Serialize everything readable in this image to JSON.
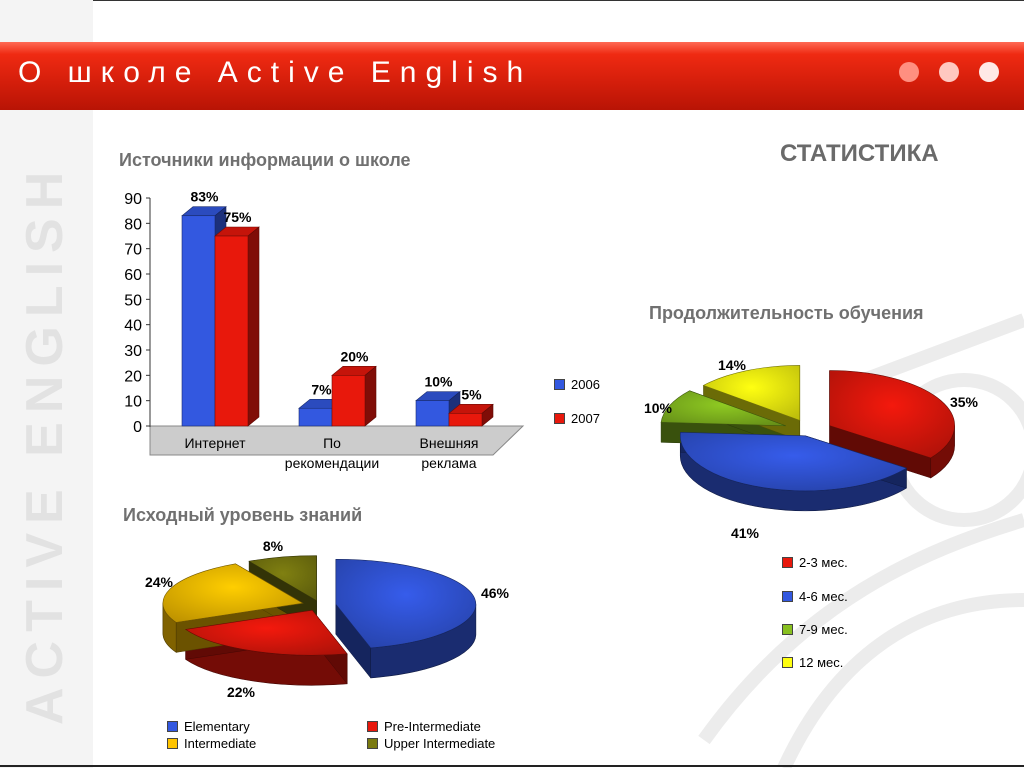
{
  "banner": {
    "title": "О школе Active English"
  },
  "sidebar": {
    "vertical_text": "ACTIVE ENGLISH"
  },
  "page": {
    "title": "СТАТИСТИКА"
  },
  "colors": {
    "blue": "#3358e0",
    "red": "#e8180c",
    "green": "#88c020",
    "yellow": "#ffff10",
    "gold": "#ffc400",
    "olive": "#7a7a10",
    "banner": "#d41e0b"
  },
  "chart_data": [
    {
      "type": "bar",
      "title": "Источники информации о школе",
      "categories": [
        "Интернет",
        "По рекомендации",
        "Внешняя реклама"
      ],
      "category_lines": [
        [
          "Интернет"
        ],
        [
          "По",
          "рекомендации"
        ],
        [
          "Внешняя",
          "реклама"
        ]
      ],
      "series": [
        {
          "name": "2006",
          "values": [
            83,
            7,
            10
          ],
          "labels": [
            "83%",
            "7%",
            "10%"
          ]
        },
        {
          "name": "2007",
          "values": [
            75,
            20,
            5
          ],
          "labels": [
            "75%",
            "20%",
            "5%"
          ]
        }
      ],
      "yticks": [
        "0",
        "10",
        "20",
        "30",
        "40",
        "50",
        "60",
        "70",
        "80",
        "90"
      ],
      "ylim": [
        0,
        90
      ],
      "legend_position": "right"
    },
    {
      "type": "pie",
      "title": "Продолжительность обучения",
      "labels": [
        "2-3 мес.",
        "4-6 мес.",
        "7-9 мес.",
        "12 мес."
      ],
      "values": [
        35,
        41,
        10,
        14
      ],
      "value_labels": [
        "35%",
        "41%",
        "10%",
        "14%"
      ],
      "legend_position": "bottom"
    },
    {
      "type": "pie",
      "title": "Исходный уровень знаний",
      "labels": [
        "Elementary",
        "Pre-Intermediate",
        "Intermediate",
        "Upper Intermediate"
      ],
      "values": [
        46,
        22,
        24,
        8
      ],
      "value_labels": [
        "46%",
        "22%",
        "24%",
        "8%"
      ],
      "legend_position": "bottom"
    }
  ]
}
